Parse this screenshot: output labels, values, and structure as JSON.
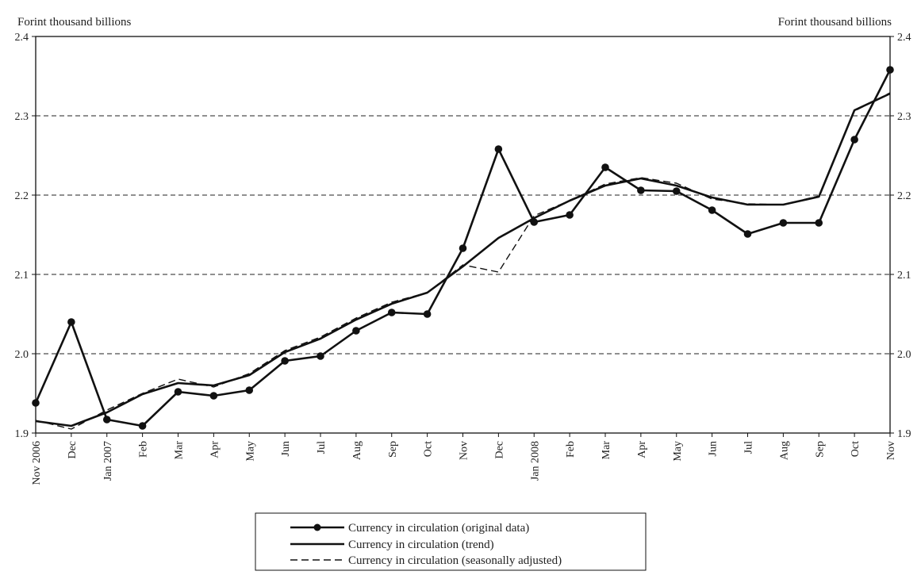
{
  "chart_data": {
    "type": "line",
    "left_axis_label": "Forint thousand billions",
    "right_axis_label": "Forint thousand billions",
    "ylim": [
      1.9,
      2.4
    ],
    "y_ticks": [
      "1.9",
      "2.0",
      "2.1",
      "2.2",
      "2.3",
      "2.4"
    ],
    "grid": "horizontal dashed",
    "legend_position": "bottom-center",
    "categories": [
      "Nov 2006",
      "Dec",
      "Jan 2007",
      "Feb",
      "Mar",
      "Apr",
      "May",
      "Jun",
      "Jul",
      "Aug",
      "Sep",
      "Oct",
      "Nov",
      "Dec",
      "Jan 2008",
      "Feb",
      "Mar",
      "Apr",
      "May",
      "Jun",
      "Jul",
      "Aug",
      "Sep",
      "Oct",
      "Nov"
    ],
    "series": [
      {
        "name": "Currency in circulation (original data)",
        "style": "solid-markers",
        "values": [
          1.938,
          2.04,
          1.917,
          1.909,
          1.952,
          1.947,
          1.954,
          1.991,
          1.997,
          2.029,
          2.052,
          2.05,
          2.133,
          2.258,
          2.166,
          2.175,
          2.235,
          2.206,
          2.205,
          2.181,
          2.151,
          2.165,
          2.165,
          2.27,
          2.358
        ]
      },
      {
        "name": "Currency in circulation (trend)",
        "style": "solid",
        "values": [
          1.915,
          1.909,
          1.926,
          1.949,
          1.963,
          1.96,
          1.973,
          2.002,
          2.019,
          2.043,
          2.063,
          2.077,
          2.11,
          2.146,
          2.171,
          2.193,
          2.212,
          2.221,
          2.212,
          2.197,
          2.188,
          2.188,
          2.198,
          2.307,
          2.328
        ]
      },
      {
        "name": "Currency in circulation (seasonally adjusted)",
        "style": "dashed",
        "values": [
          1.916,
          1.905,
          1.929,
          1.95,
          1.968,
          1.958,
          1.975,
          2.004,
          2.021,
          2.045,
          2.065,
          2.077,
          2.112,
          2.103,
          2.174,
          2.193,
          2.214,
          2.222,
          2.215,
          2.195,
          2.189,
          2.188,
          2.199,
          2.306,
          2.329
        ]
      }
    ]
  }
}
